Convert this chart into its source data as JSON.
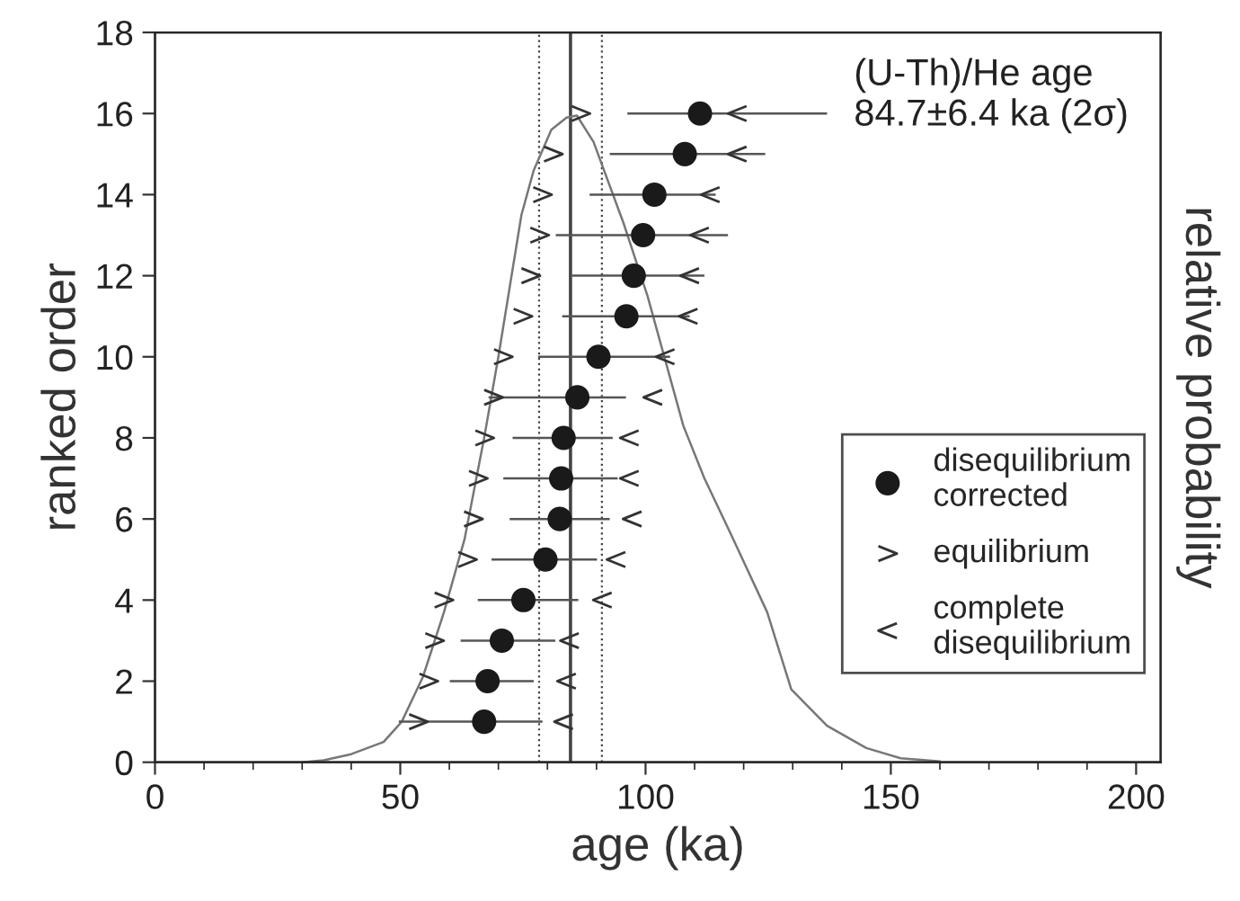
{
  "chart_data": {
    "type": "scatter",
    "xlabel": "age (ka)",
    "ylabel": "ranked order",
    "y2label": "relative probability",
    "xlim": [
      0,
      205
    ],
    "xticks": [
      0,
      50,
      100,
      150,
      200
    ],
    "ylim": [
      0,
      18
    ],
    "yticks": [
      0,
      2,
      4,
      6,
      8,
      10,
      12,
      14,
      16,
      18
    ],
    "grid": false,
    "legend": "lower right",
    "annotations": [
      "(U-Th)/He age\n84.7±6.4 ka (2σ)"
    ],
    "ref_lines": [
      {
        "axis": "x",
        "value": 84.7,
        "color": "#444444",
        "line_style": "solid"
      },
      {
        "axis": "x",
        "value": 78.3,
        "color": "#444444",
        "line_style": "dotted"
      },
      {
        "axis": "x",
        "value": 91.1,
        "color": "#444444",
        "line_style": "dotted"
      }
    ],
    "series": [
      {
        "type": "line",
        "color": "#777777",
        "marker": "none",
        "line_style": "solid",
        "x": [
          30,
          34.4,
          40,
          46.6,
          50.3,
          54.6,
          58.9,
          63.1,
          67.1,
          70,
          74.7,
          77.2,
          80.8,
          83.9,
          86,
          89.4,
          95.5,
          100.4,
          107.7,
          112,
          117.5,
          124.8,
          129.7,
          137,
          145,
          152,
          160
        ],
        "values": [
          0,
          0.05,
          0.2,
          0.5,
          1.0,
          2.1,
          3.7,
          5.5,
          8.0,
          10.0,
          13.5,
          14.6,
          15.6,
          15.9,
          15.95,
          15.3,
          13.3,
          11.5,
          8.3,
          7.0,
          5.6,
          3.7,
          1.8,
          0.9,
          0.35,
          0.1,
          0.02
        ]
      },
      {
        "name": "disequilibrium\ncorrected",
        "color": "#1a1a1a",
        "marker": "circle",
        "x": [
          67.1,
          67.8,
          70.7,
          75.1,
          79.6,
          82.5,
          82.8,
          83.3,
          86.1,
          90.4,
          96.1,
          97.6,
          99.5,
          101.8,
          108,
          111.1
        ],
        "values": [
          1,
          2,
          3,
          4,
          5,
          6,
          7,
          8,
          9,
          10,
          11,
          12,
          13,
          14,
          15,
          16
        ],
        "xerrors": [
          [
            49.7,
            79
          ],
          [
            60.1,
            77.2
          ],
          [
            62.3,
            81.6
          ],
          [
            65.8,
            86.3
          ],
          [
            68.6,
            90.1
          ],
          [
            72.3,
            92.7
          ],
          [
            71,
            94.3
          ],
          [
            72.9,
            93.3
          ],
          [
            68,
            96
          ],
          [
            78.1,
            105
          ],
          [
            83,
            109
          ],
          [
            85,
            112
          ],
          [
            81.7,
            116.8
          ],
          [
            88.6,
            114.3
          ],
          [
            92.7,
            124.4
          ],
          [
            96.3,
            137
          ]
        ]
      },
      {
        "name": "equilibrium",
        "color": "#333333",
        "x": [
          53.7,
          55.8,
          57,
          58.9,
          63.7,
          64.9,
          65.9,
          67.2,
          69,
          71,
          75,
          76.6,
          78.4,
          79,
          81.2,
          86.8
        ],
        "values": [
          1,
          2,
          3,
          4,
          5,
          6,
          7,
          8,
          9,
          10,
          11,
          12,
          13,
          14,
          15,
          16
        ]
      },
      {
        "name": "complete\ndisequilibrium",
        "color": "#333333",
        "x": [
          83.3,
          83.9,
          84.5,
          91.2,
          94,
          97.3,
          96.7,
          96.7,
          101.5,
          104,
          108.7,
          109,
          111,
          113.2,
          118.7,
          118.7
        ],
        "values": [
          1,
          2,
          3,
          4,
          5,
          6,
          7,
          8,
          9,
          10,
          11,
          12,
          13,
          14,
          15,
          16
        ]
      }
    ]
  }
}
